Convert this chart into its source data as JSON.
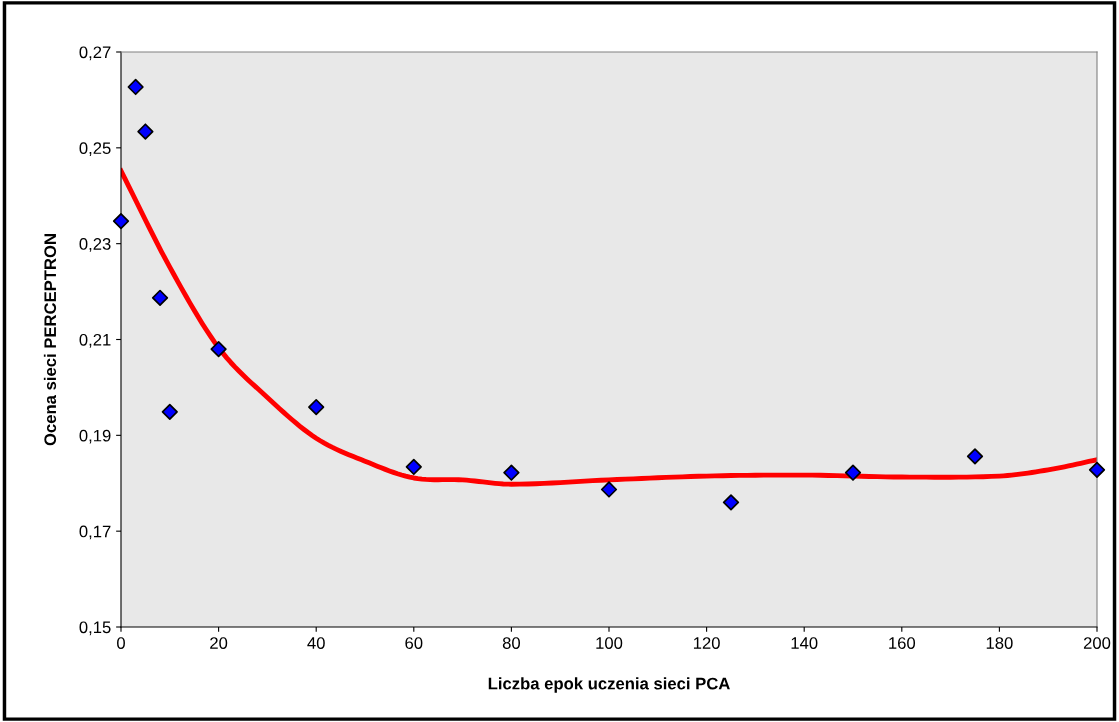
{
  "chart_data": {
    "type": "scatter",
    "xlabel": "Liczba epok uczenia sieci PCA",
    "ylabel": "Ocena sieci PERCEPTRON",
    "xlim": [
      0,
      200
    ],
    "xticks": [
      0,
      20,
      40,
      60,
      80,
      100,
      120,
      140,
      160,
      180,
      200
    ],
    "ylim": [
      0.15,
      0.27
    ],
    "yticks": [
      {
        "value": 0.15,
        "label": "0,15"
      },
      {
        "value": 0.17,
        "label": "0,17"
      },
      {
        "value": 0.19,
        "label": "0,19"
      },
      {
        "value": 0.21,
        "label": "0,21"
      },
      {
        "value": 0.23,
        "label": "0,23"
      },
      {
        "value": 0.25,
        "label": "0,25"
      },
      {
        "value": 0.27,
        "label": "0,27"
      }
    ],
    "grid": false,
    "series": [
      {
        "color": "#0000ff",
        "marker": "diamond",
        "x": [
          0,
          3,
          5,
          8,
          10,
          20,
          40,
          60,
          80,
          100,
          125,
          150,
          175,
          200
        ],
        "values": [
          0.2347,
          0.2627,
          0.2534,
          0.2187,
          0.1949,
          0.208,
          0.1959,
          0.1834,
          0.1822,
          0.1787,
          0.176,
          0.1822,
          0.1856,
          0.1828
        ]
      },
      {
        "type": "line",
        "color": "#ff0000",
        "marker": "none",
        "line_style": "solid",
        "x": [
          0,
          10,
          20,
          30,
          40,
          50,
          60,
          70,
          80,
          100,
          120,
          140,
          160,
          180,
          190,
          200
        ],
        "values": [
          0.2452,
          0.2251,
          0.2083,
          0.1979,
          0.1894,
          0.1846,
          0.1811,
          0.1807,
          0.1798,
          0.1807,
          0.1815,
          0.1817,
          0.1813,
          0.1815,
          0.1828,
          0.1849
        ]
      }
    ]
  }
}
